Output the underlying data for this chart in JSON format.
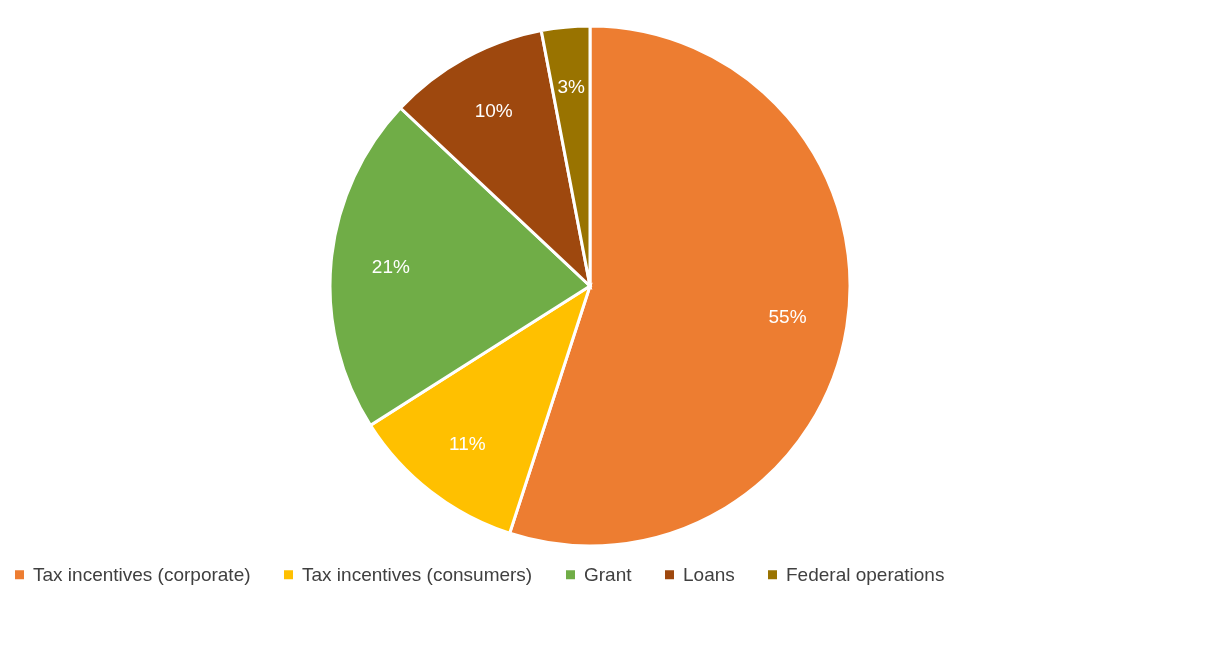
{
  "chart_data": {
    "type": "pie",
    "categories": [
      "Tax incentives (corporate)",
      "Tax incentives (consumers)",
      "Grant",
      "Loans",
      "Federal operations"
    ],
    "values": [
      55,
      11,
      21,
      10,
      3
    ],
    "colors": [
      "#ed7d31",
      "#ffc000",
      "#70ad47",
      "#9e480e",
      "#997300"
    ],
    "value_labels": [
      "55%",
      "11%",
      "21%",
      "10%",
      "3%"
    ],
    "legend": "bottom"
  }
}
